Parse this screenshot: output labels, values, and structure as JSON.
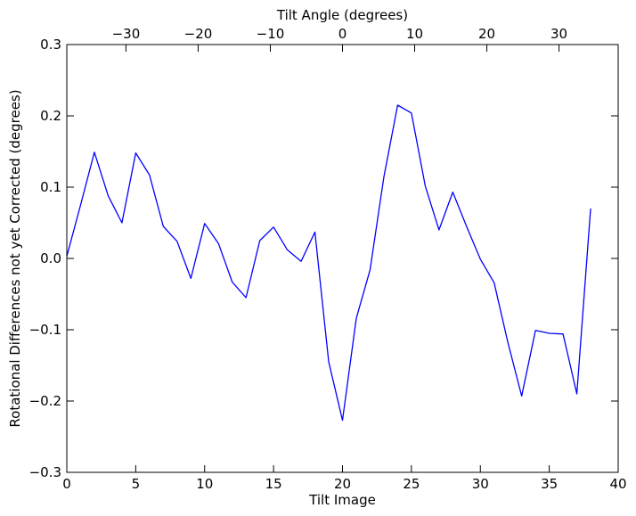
{
  "chart_data": {
    "type": "line",
    "xlabel": "Tilt Image",
    "ylabel": "Rotational Differences not yet Corrected (degrees)",
    "top_xlabel": "Tilt Angle (degrees)",
    "xlim": [
      0,
      40
    ],
    "ylim": [
      -0.3,
      0.3
    ],
    "top_xlim": [
      -38.2,
      38.2
    ],
    "x_ticks": [
      0,
      5,
      10,
      15,
      20,
      25,
      30,
      35,
      40
    ],
    "y_ticks": [
      -0.3,
      -0.2,
      -0.1,
      0.0,
      0.1,
      0.2,
      0.3
    ],
    "y_tick_labels": [
      "−0.3",
      "−0.2",
      "−0.1",
      "0.0",
      "0.1",
      "0.2",
      "0.3"
    ],
    "top_x_ticks": [
      -30,
      -20,
      -10,
      0,
      10,
      20,
      30
    ],
    "top_x_tick_labels": [
      "−30",
      "−20",
      "−10",
      "0",
      "10",
      "20",
      "30"
    ],
    "grid": false,
    "series": [
      {
        "color": "#0000ff",
        "x": [
          0,
          1,
          2,
          3,
          4,
          5,
          6,
          7,
          8,
          9,
          10,
          11,
          12,
          13,
          14,
          15,
          16,
          17,
          18,
          19,
          20,
          21,
          22,
          23,
          24,
          25,
          26,
          27,
          28,
          29,
          30,
          31,
          32,
          33,
          34,
          35,
          36,
          37,
          38
        ],
        "y": [
          0.003,
          0.075,
          0.149,
          0.088,
          0.05,
          0.148,
          0.117,
          0.045,
          0.024,
          -0.028,
          0.049,
          0.021,
          -0.033,
          -0.055,
          0.025,
          0.044,
          0.012,
          -0.004,
          0.037,
          -0.145,
          -0.227,
          -0.084,
          -0.016,
          0.114,
          0.215,
          0.204,
          0.102,
          0.04,
          0.093,
          0.045,
          -0.001,
          -0.034,
          -0.118,
          -0.193,
          -0.101,
          -0.105,
          -0.106,
          -0.19,
          0.07
        ]
      }
    ]
  }
}
